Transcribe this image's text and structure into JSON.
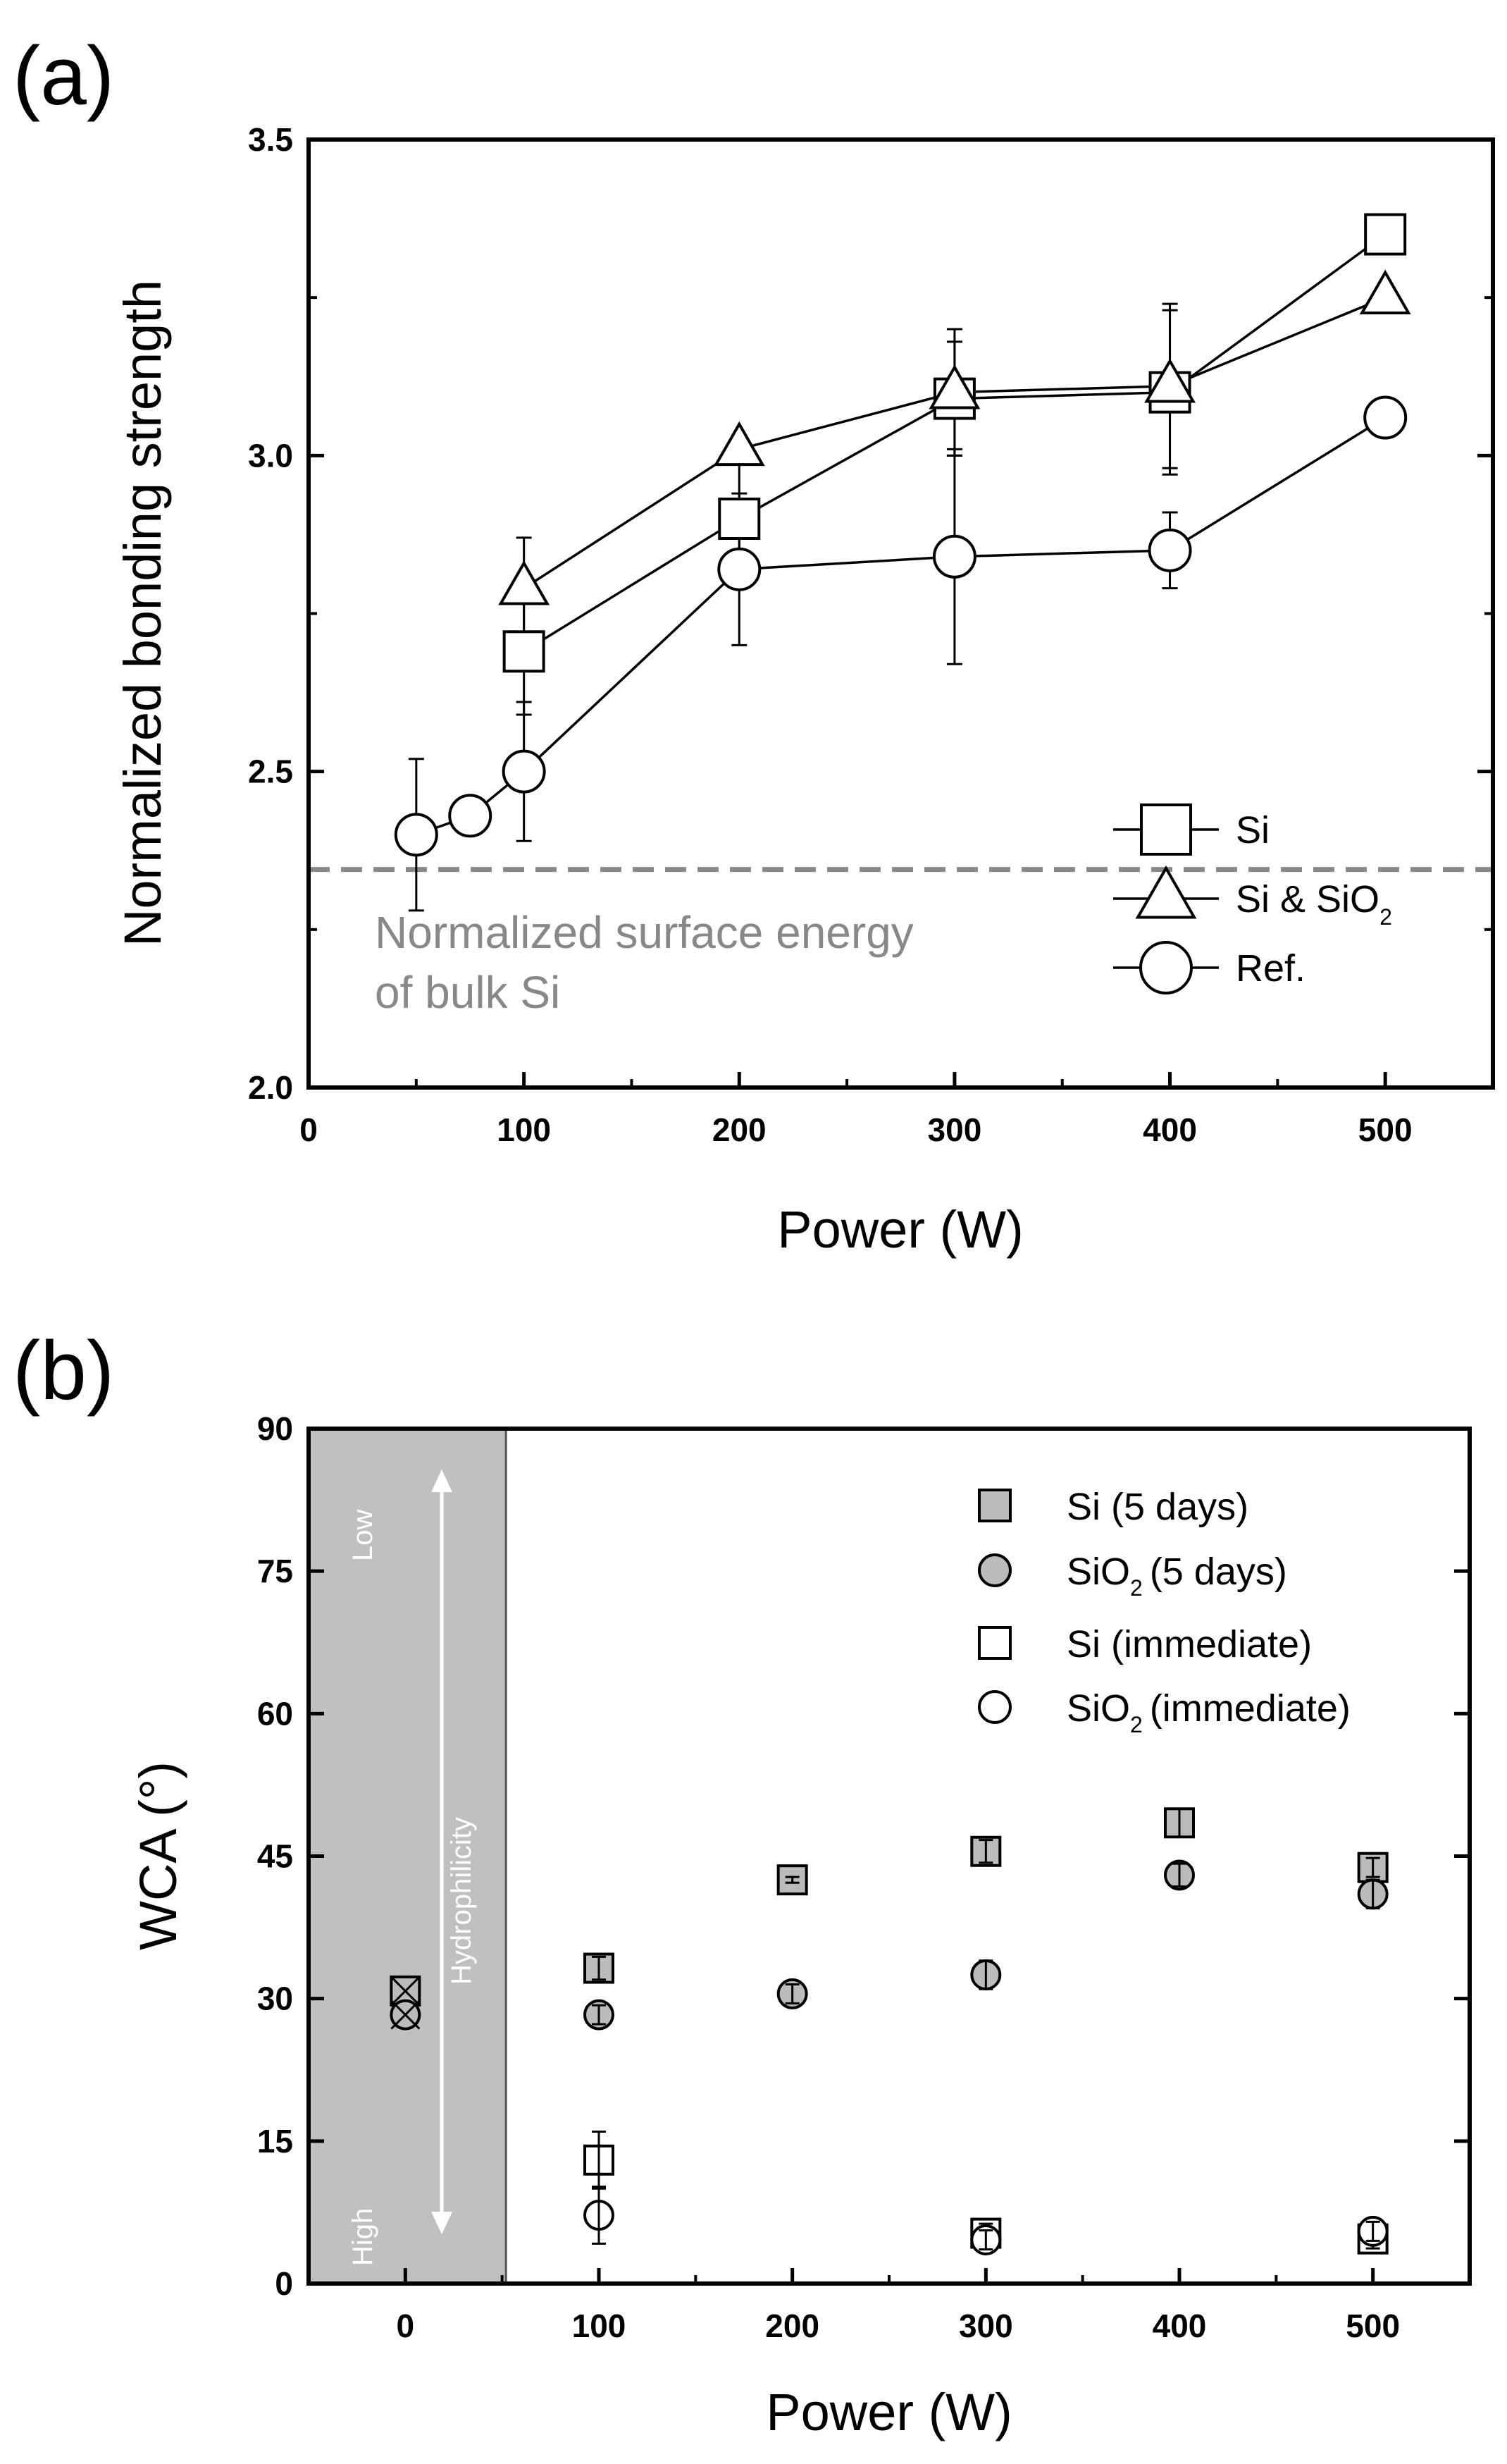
{
  "chart_data": [
    {
      "panel_label": "(a)",
      "type": "line",
      "xlabel": "Power (W)",
      "ylabel": "Normalized bonding strength",
      "xlim": [
        0,
        550
      ],
      "ylim": [
        2.0,
        3.5
      ],
      "xticks": [
        0,
        100,
        200,
        300,
        400,
        500
      ],
      "xtick_labels": [
        "0",
        "100",
        "200",
        "300",
        "400",
        "500"
      ],
      "yticks": [
        2.0,
        2.5,
        3.0,
        3.5
      ],
      "ytick_labels": [
        "2.0",
        "2.5",
        "3.0",
        "3.5"
      ],
      "series": [
        {
          "name": "Si",
          "marker": "square",
          "x": [
            100,
            200,
            300,
            400,
            500
          ],
          "y": [
            2.69,
            2.9,
            3.09,
            3.1,
            3.35
          ],
          "err": [
            0.1,
            0.09,
            0.09,
            0.13,
            0
          ]
        },
        {
          "name": "Si & SiO2",
          "marker": "triangle",
          "x": [
            100,
            200,
            300,
            400,
            500
          ],
          "y": [
            2.79,
            3.01,
            3.1,
            3.11,
            3.25
          ],
          "err": [
            0.08,
            0,
            0.1,
            0.13,
            0
          ]
        },
        {
          "name": "Ref.",
          "marker": "circle",
          "x": [
            50,
            75,
            100,
            200,
            300,
            400,
            500
          ],
          "y": [
            2.4,
            2.43,
            2.5,
            2.82,
            2.84,
            2.85,
            3.06
          ],
          "err": [
            0.12,
            0.03,
            0.11,
            0.12,
            0.17,
            0.06,
            0
          ]
        }
      ],
      "legend": [
        {
          "name": "Si",
          "label": "Si",
          "sub": ""
        },
        {
          "name": "Si & SiO2",
          "label": "Si & SiO",
          "sub": "2"
        },
        {
          "name": "Ref.",
          "label": "Ref.",
          "sub": ""
        }
      ],
      "legend_position": "lower-right",
      "reference_line": {
        "y": 2.345,
        "style": "dashed",
        "color": "#888888",
        "text_lines": [
          "Normalized surface energy",
          "of bulk Si"
        ]
      }
    },
    {
      "panel_label": "(b)",
      "type": "scatter",
      "xlabel": "Power (W)",
      "ylabel": "WCA (°)",
      "xlim": [
        -50,
        550
      ],
      "ylim": [
        0,
        90
      ],
      "xticks": [
        0,
        100,
        200,
        300,
        400,
        500
      ],
      "xtick_labels": [
        "0",
        "100",
        "200",
        "300",
        "400",
        "500"
      ],
      "yticks": [
        0,
        15,
        30,
        45,
        60,
        75,
        90
      ],
      "ytick_labels": [
        "0",
        "15",
        "30",
        "45",
        "60",
        "75",
        "90"
      ],
      "shaded_region": {
        "x": [
          -50,
          52
        ],
        "color": "#c0c0c0",
        "top_label": "Low",
        "bottom_label": "High",
        "arrow_label": "Hydrophilicity"
      },
      "reference_points": [
        {
          "x": 0,
          "y": 30.8,
          "marker": "crossed-square"
        },
        {
          "x": 0,
          "y": 28.3,
          "marker": "crossed-circle"
        }
      ],
      "series": [
        {
          "name": "Si (5 days)",
          "marker": "square",
          "fill": "#bbbbbb",
          "x": [
            100,
            200,
            300,
            400,
            500
          ],
          "y": [
            33.2,
            42.5,
            45.5,
            48.5,
            43.8
          ],
          "err": [
            1.2,
            0.3,
            1.2,
            1.5,
            1.0
          ]
        },
        {
          "name": "SiO2 (5 days)",
          "marker": "circle",
          "fill": "#bbbbbb",
          "x": [
            100,
            200,
            300,
            400,
            500
          ],
          "y": [
            28.3,
            30.5,
            32.5,
            43.0,
            41.0
          ],
          "err": [
            1.0,
            1.0,
            1.5,
            1.2,
            1.5
          ]
        },
        {
          "name": "Si (immediate)",
          "marker": "square",
          "fill": "#ffffff",
          "x": [
            100,
            300,
            500
          ],
          "y": [
            13.0,
            5.3,
            4.7
          ],
          "err": [
            3.0,
            1.0,
            1.0
          ]
        },
        {
          "name": "SiO2 (immediate)",
          "marker": "circle",
          "fill": "#ffffff",
          "x": [
            100,
            300,
            500
          ],
          "y": [
            7.2,
            4.6,
            5.5
          ],
          "err": [
            3.0,
            1.0,
            1.0
          ]
        }
      ],
      "legend": [
        {
          "name": "Si (5 days)",
          "label": "Si (5 days)",
          "pre": "",
          "sub": "",
          "post": ""
        },
        {
          "name": "SiO2 (5 days)",
          "label": "",
          "pre": "SiO",
          "sub": "2",
          "post": "(5 days)"
        },
        {
          "name": "Si (immediate)",
          "label": "Si (immediate)",
          "pre": "",
          "sub": "",
          "post": ""
        },
        {
          "name": "SiO2 (immediate)",
          "label": "",
          "pre": "SiO",
          "sub": "2",
          "post": "(immediate)"
        }
      ],
      "legend_position": "top-right"
    }
  ]
}
